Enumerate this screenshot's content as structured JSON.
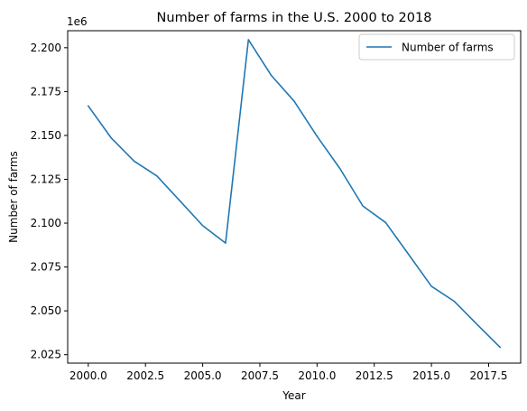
{
  "chart_data": {
    "type": "line",
    "title": "Number of farms in the U.S. 2000 to 2018",
    "xlabel": "Year",
    "ylabel": "Number of farms",
    "offset_label": "1e6",
    "xlim": [
      1999.1,
      2018.9
    ],
    "ylim": [
      2020200,
      2209700
    ],
    "grid": false,
    "legend_position": "upper right",
    "x_ticks": [
      2000.0,
      2002.5,
      2005.0,
      2007.5,
      2010.0,
      2012.5,
      2015.0,
      2017.5
    ],
    "x_tick_labels": [
      "2000.0",
      "2002.5",
      "2005.0",
      "2007.5",
      "2010.0",
      "2012.5",
      "2015.0",
      "2017.5"
    ],
    "y_ticks": [
      2025000,
      2050000,
      2075000,
      2100000,
      2125000,
      2150000,
      2175000,
      2200000
    ],
    "y_tick_labels": [
      "2.025",
      "2.050",
      "2.075",
      "2.100",
      "2.125",
      "2.150",
      "2.175",
      "2.200"
    ],
    "series": [
      {
        "name": "Number of farms",
        "color": "#1f77b4",
        "x": [
          2000,
          2001,
          2002,
          2003,
          2004,
          2005,
          2006,
          2007,
          2008,
          2009,
          2010,
          2011,
          2012,
          2013,
          2014,
          2015,
          2016,
          2017,
          2018
        ],
        "values": [
          2166800,
          2148600,
          2135400,
          2126900,
          2112800,
          2098600,
          2088600,
          2204600,
          2184200,
          2169500,
          2149500,
          2131100,
          2109800,
          2100300,
          2082200,
          2064000,
          2055400,
          2042200,
          2029200
        ]
      }
    ]
  }
}
